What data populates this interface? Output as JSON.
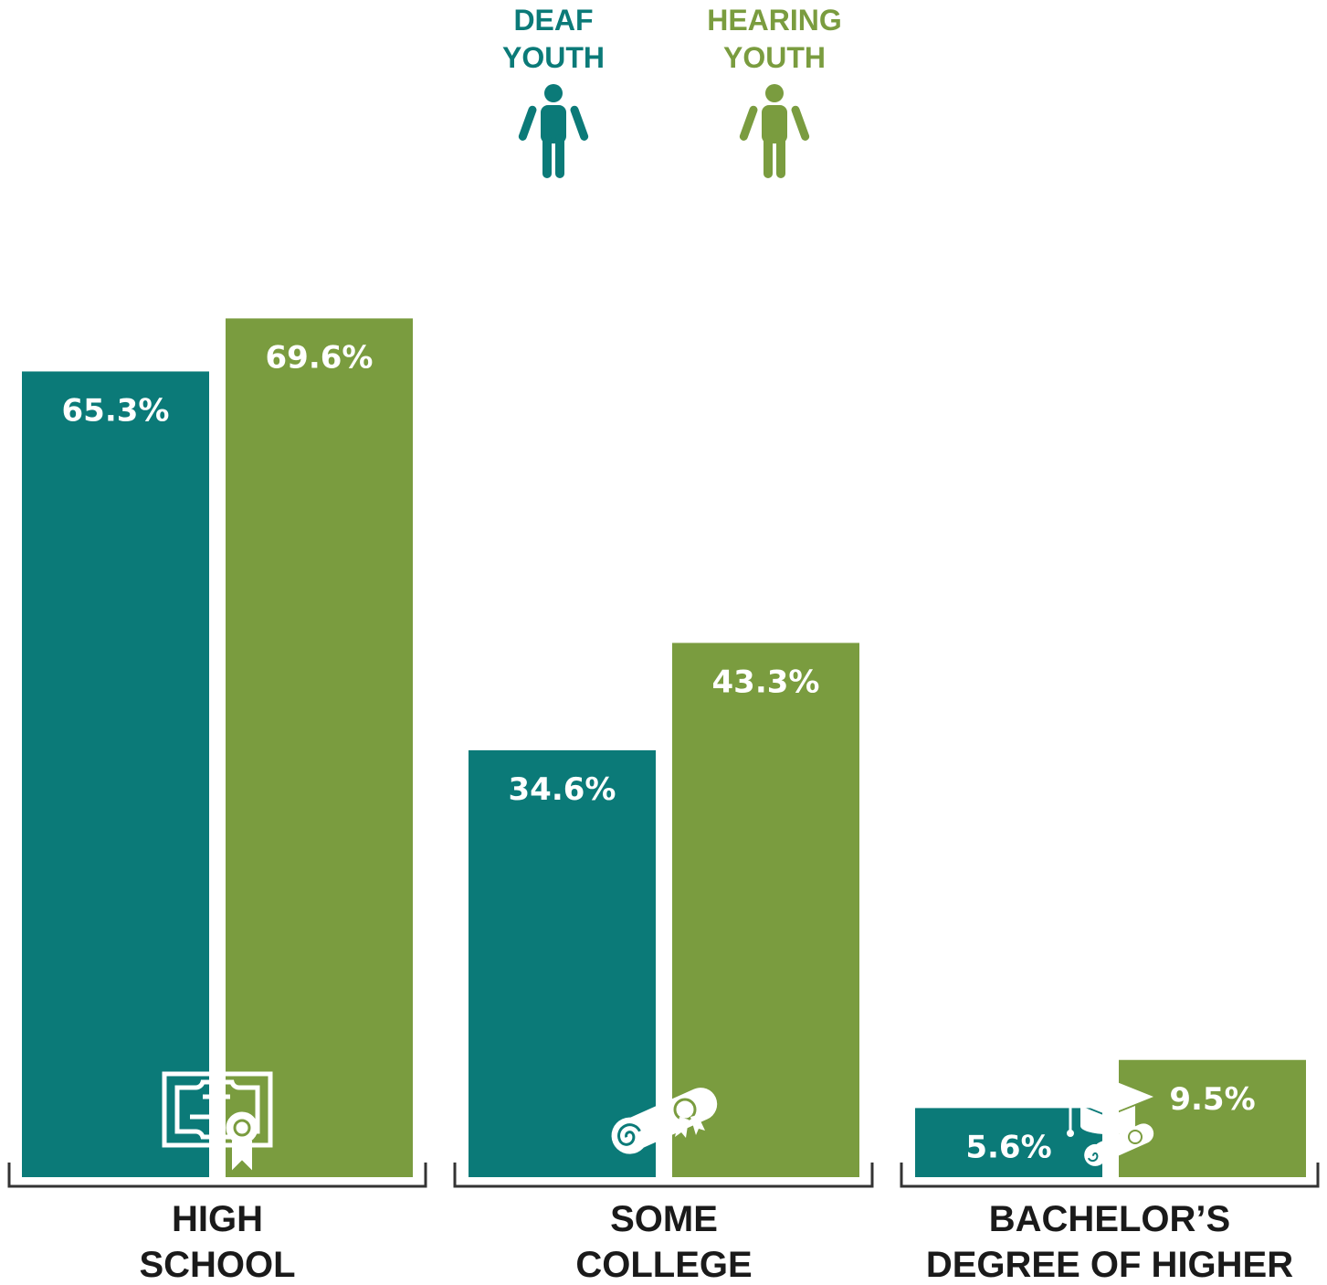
{
  "colors": {
    "deaf": "#0b7a78",
    "hearing": "#7a9c3f",
    "text": "#1a1a1a",
    "bracket": "#333333"
  },
  "legend": {
    "deaf": {
      "line1": "DEAF",
      "line2": "YOUTH",
      "icon": "person-icon"
    },
    "hearing": {
      "line1": "HEARING",
      "line2": "YOUTH",
      "icon": "person-icon"
    }
  },
  "chart_data": {
    "type": "bar",
    "categories": [
      "HIGH SCHOOL",
      "SOME COLLEGE",
      "BACHELOR’S DEGREE OF HIGHER"
    ],
    "category_lines": [
      [
        "HIGH",
        "SCHOOL"
      ],
      [
        "SOME",
        "COLLEGE"
      ],
      [
        "BACHELOR’S",
        "DEGREE OF HIGHER"
      ]
    ],
    "category_icons": [
      "certificate-icon",
      "diploma-scroll-icon",
      "graduation-cap-icon"
    ],
    "series": [
      {
        "name": "DEAF YOUTH",
        "values": [
          65.3,
          34.6,
          5.6
        ],
        "labels": [
          "65.3%",
          "34.6%",
          "5.6%"
        ]
      },
      {
        "name": "HEARING YOUTH",
        "values": [
          69.6,
          43.3,
          9.5
        ],
        "labels": [
          "69.6%",
          "43.3%",
          "9.5%"
        ]
      }
    ],
    "ylim": [
      0,
      100
    ],
    "grid": false,
    "legend_position": "top-center"
  }
}
